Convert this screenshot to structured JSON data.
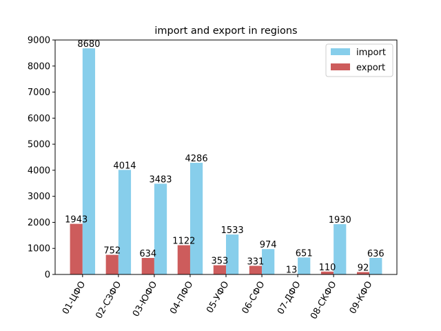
{
  "chart_data": {
    "type": "bar",
    "title": "import and export in regions",
    "xlabel": "",
    "ylabel": "",
    "ylim": [
      0,
      9000
    ],
    "yticks": [
      0,
      1000,
      2000,
      3000,
      4000,
      5000,
      6000,
      7000,
      8000,
      9000
    ],
    "grid": false,
    "legend_position": "top-right",
    "categories": [
      "01-ЦФО",
      "02-СЗФО",
      "03-ЮФО",
      "04-ПФО",
      "05-УФО",
      "06-СФО",
      "07-ДФО",
      "08-СКФО",
      "09-КФО"
    ],
    "series": [
      {
        "name": "import",
        "color": "#87ceeb",
        "values": [
          8680,
          4014,
          3483,
          4286,
          1533,
          974,
          651,
          1930,
          636
        ]
      },
      {
        "name": "export",
        "color": "#cd5c5c",
        "values": [
          1943,
          752,
          634,
          1122,
          353,
          331,
          13,
          110,
          92
        ]
      }
    ]
  }
}
